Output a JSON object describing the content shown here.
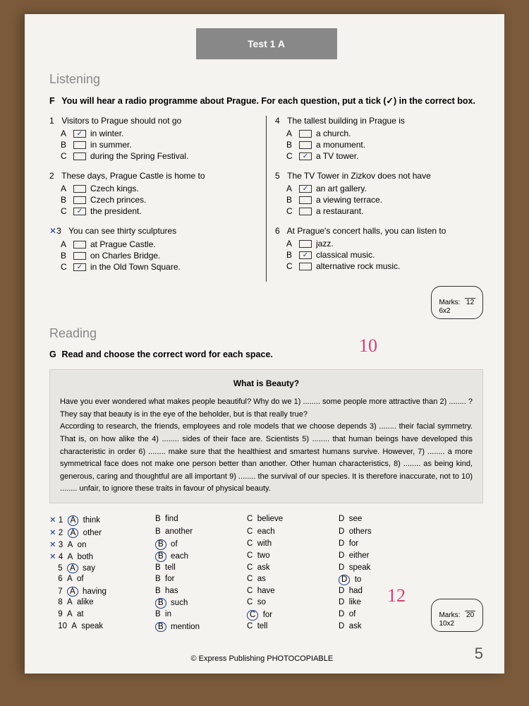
{
  "header": {
    "title": "Test 1 A"
  },
  "listening": {
    "section_title": "Listening",
    "task_letter": "F",
    "instruction": "You will hear a radio programme about Prague. For each question, put a tick (✓) in the correct box.",
    "questions": [
      {
        "num": "1",
        "prompt": "Visitors to Prague should not go",
        "options": [
          {
            "l": "A",
            "t": "in winter.",
            "checked": true
          },
          {
            "l": "B",
            "t": "in summer.",
            "checked": false
          },
          {
            "l": "C",
            "t": "during the Spring Festival.",
            "checked": false
          }
        ]
      },
      {
        "num": "2",
        "prompt": "These days, Prague Castle is home to",
        "options": [
          {
            "l": "A",
            "t": "Czech kings.",
            "checked": false
          },
          {
            "l": "B",
            "t": "Czech princes.",
            "checked": false
          },
          {
            "l": "C",
            "t": "the president.",
            "checked": true
          }
        ]
      },
      {
        "num": "3",
        "prompt": "You can see thirty sculptures",
        "x": true,
        "options": [
          {
            "l": "A",
            "t": "at Prague Castle.",
            "checked": false
          },
          {
            "l": "B",
            "t": "on Charles Bridge.",
            "checked": false
          },
          {
            "l": "C",
            "t": "in the Old Town Square.",
            "checked": true
          }
        ]
      },
      {
        "num": "4",
        "prompt": "The tallest building in Prague is",
        "options": [
          {
            "l": "A",
            "t": "a church.",
            "checked": false
          },
          {
            "l": "B",
            "t": "a monument.",
            "checked": false
          },
          {
            "l": "C",
            "t": "a TV tower.",
            "checked": true
          }
        ]
      },
      {
        "num": "5",
        "prompt": "The TV Tower in Zizkov does not have",
        "options": [
          {
            "l": "A",
            "t": "an art gallery.",
            "checked": true
          },
          {
            "l": "B",
            "t": "a viewing terrace.",
            "checked": false
          },
          {
            "l": "C",
            "t": "a restaurant.",
            "checked": false
          }
        ]
      },
      {
        "num": "6",
        "prompt": "At Prague's concert halls, you can listen to",
        "options": [
          {
            "l": "A",
            "t": "jazz.",
            "checked": false
          },
          {
            "l": "B",
            "t": "classical music.",
            "checked": true
          },
          {
            "l": "C",
            "t": "alternative rock music.",
            "checked": false
          }
        ]
      }
    ],
    "marks": {
      "label": "Marks:",
      "calc": "6x2",
      "total": "12"
    },
    "handwritten_score": "10"
  },
  "reading": {
    "section_title": "Reading",
    "task_letter": "G",
    "instruction": "Read and choose the correct word for each space.",
    "passage_title": "What is Beauty?",
    "passage": "Have you ever wondered what makes people beautiful? Why do we 1) ........ some people more attractive than 2) ........ ? They say that beauty is in the eye of the beholder, but is that really true?\nAccording to research, the friends, employees and role models that we choose depends 3) ........ their facial symmetry. That is, on how alike the 4) ........ sides of their face are. Scientists 5) ........ that human beings have developed this characteristic in order 6) ........ make sure that the healthiest and smartest humans survive. However, 7) ........ a more symmetrical face does not make one person better than another. Other human characteristics, 8) ........ as being kind, generous, caring and thoughtful are all important 9) ........ the survival of our species. It is therefore inaccurate, not to 10) ........ unfair, to ignore these traits in favour of physical beauty.",
    "gap_answers": [
      {
        "n": "1",
        "x": true,
        "a": "think",
        "b": "find",
        "c": "believe",
        "d": "see",
        "sel": "A"
      },
      {
        "n": "2",
        "x": true,
        "a": "other",
        "b": "another",
        "c": "each",
        "d": "others",
        "sel": "A"
      },
      {
        "n": "3",
        "x": true,
        "a": "on",
        "b": "of",
        "c": "with",
        "d": "for",
        "sel": "B"
      },
      {
        "n": "4",
        "x": true,
        "a": "both",
        "b": "each",
        "c": "two",
        "d": "either",
        "sel": "B"
      },
      {
        "n": "5",
        "x": false,
        "a": "say",
        "b": "tell",
        "c": "ask",
        "d": "speak",
        "sel": "A"
      },
      {
        "n": "6",
        "x": false,
        "a": "of",
        "b": "for",
        "c": "as",
        "d": "to",
        "sel": "D"
      },
      {
        "n": "7",
        "x": false,
        "a": "having",
        "b": "has",
        "c": "have",
        "d": "had",
        "sel": "A"
      },
      {
        "n": "8",
        "x": false,
        "a": "alike",
        "b": "such",
        "c": "so",
        "d": "like",
        "sel": "B"
      },
      {
        "n": "9",
        "x": false,
        "a": "at",
        "b": "in",
        "c": "for",
        "d": "of",
        "sel": "C"
      },
      {
        "n": "10",
        "x": false,
        "a": "speak",
        "b": "mention",
        "c": "tell",
        "d": "ask",
        "sel": "B"
      }
    ],
    "marks": {
      "label": "Marks:",
      "calc": "10x2",
      "total": "20"
    },
    "handwritten_score": "12"
  },
  "footer": {
    "copyright": "© Express Publishing  PHOTOCOPIABLE",
    "page": "5"
  }
}
